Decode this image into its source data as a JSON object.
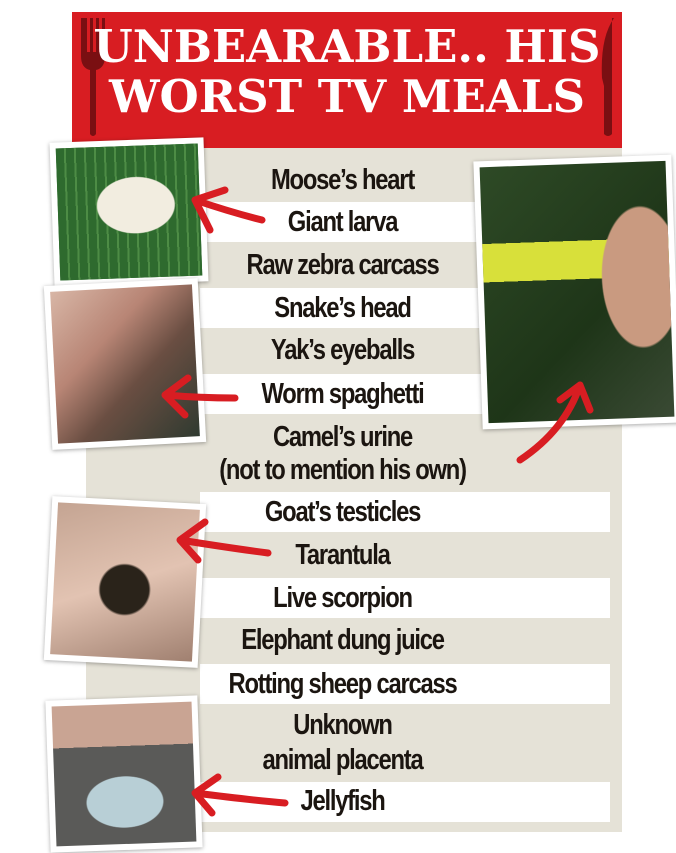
{
  "header": {
    "title_line1": "UNBEARABLE.. HIS",
    "title_line2": "WORST TV MEALS",
    "left_icon": "fork-icon",
    "right_icon": "knife-icon"
  },
  "colors": {
    "banner": "#d81d22",
    "panel": "#e5e2d7",
    "arrow": "#d81d22",
    "text": "#1b1510"
  },
  "meals": [
    "Moose’s heart",
    "Giant larva",
    "Raw zebra carcass",
    "Snake’s head",
    "Yak’s eyeballs",
    "Worm spaghetti",
    "Camel’s urine",
    "(not to mention his own)",
    "Goat’s testicles",
    "Tarantula",
    "Live scorpion",
    "Elephant dung juice",
    "Rotting sheep carcass",
    "Unknown",
    "animal placenta",
    "Jellyfish"
  ]
}
